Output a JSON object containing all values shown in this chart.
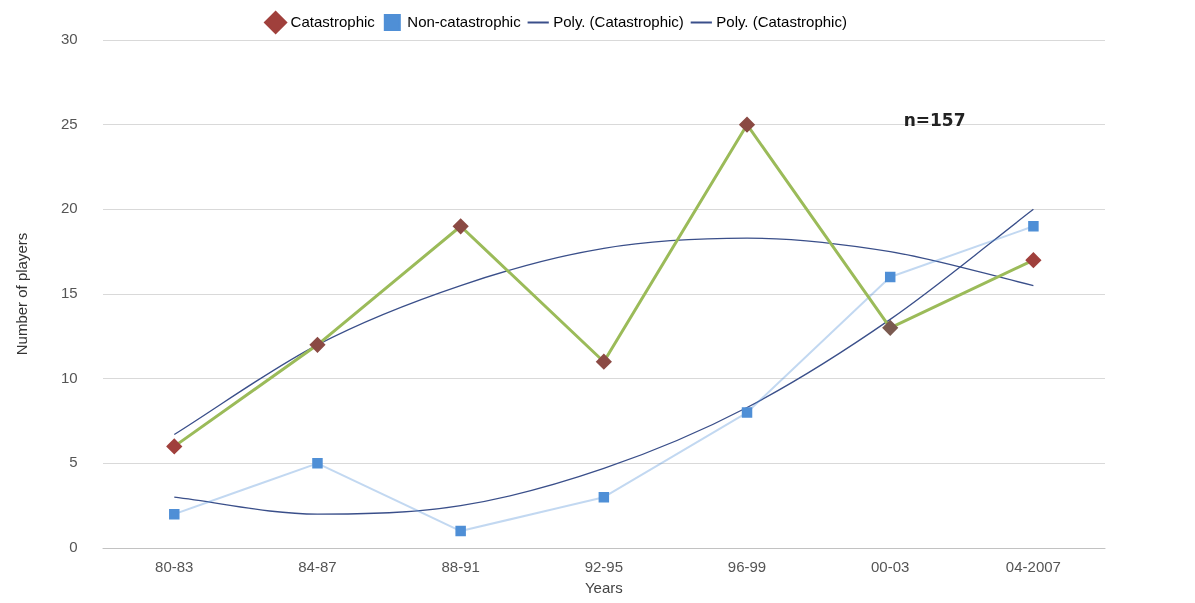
{
  "chart_data": {
    "type": "line",
    "xlabel": "Years",
    "ylabel": "Number of players",
    "categories": [
      "80-83",
      "84-87",
      "88-91",
      "92-95",
      "96-99",
      "00-03",
      "04-2007"
    ],
    "ylim": [
      0,
      30
    ],
    "yticks": [
      0,
      5,
      10,
      15,
      20,
      25,
      30
    ],
    "grid": "y",
    "legend": "top",
    "annotations": [
      "n=157"
    ],
    "series": [
      {
        "name": "Catastrophic",
        "color": "#9bbb59",
        "colors": [
          "#a0403c",
          "#8b4a44",
          "#8b4a44",
          "#8b4a44",
          "#8b4a44",
          "#7a5a50",
          "#a0403c"
        ],
        "marker": "diamond",
        "values": [
          6,
          12,
          19,
          11,
          25,
          13,
          17
        ]
      },
      {
        "name": "Non-catastrophic",
        "color": "#4f8fd6",
        "marker": "square",
        "values": [
          2,
          5,
          1,
          3,
          8,
          16,
          19
        ]
      },
      {
        "name": "Poly. (Catastrophic)",
        "color": "#3a4f8a",
        "marker": "none",
        "values": [
          6.7,
          12,
          15.5,
          17.7,
          18.3,
          17.5,
          15.5
        ]
      },
      {
        "name": "Poly. (Catastrophic)",
        "color": "#3a4f8a",
        "marker": "none",
        "values": [
          3,
          2,
          2.5,
          4.7,
          8.3,
          13.5,
          20
        ]
      }
    ]
  }
}
